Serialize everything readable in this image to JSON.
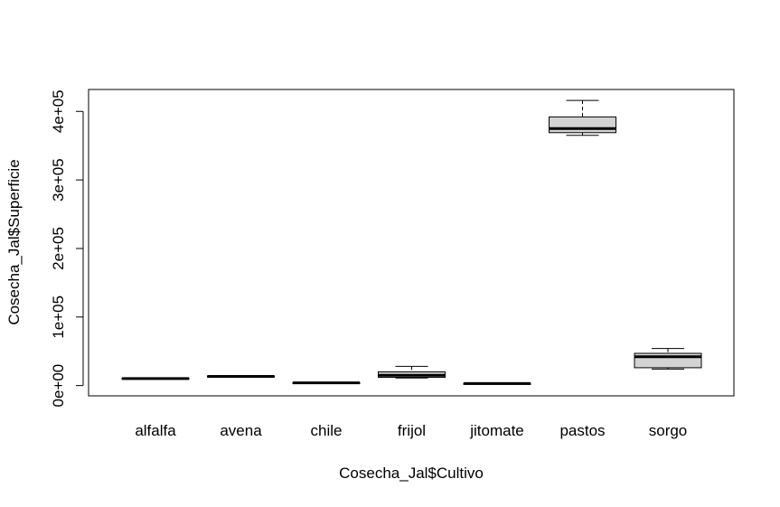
{
  "chart_data": {
    "type": "boxplot",
    "title": "",
    "xlabel": "Cosecha_Jal$Cultivo",
    "ylabel": "Cosecha_Jal$Superficie",
    "ylim": [
      -15000,
      432000
    ],
    "yticks": [
      {
        "value": 0,
        "label": "0e+00"
      },
      {
        "value": 100000,
        "label": "1e+05"
      },
      {
        "value": 200000,
        "label": "2e+05"
      },
      {
        "value": 300000,
        "label": "3e+05"
      },
      {
        "value": 400000,
        "label": "4e+05"
      }
    ],
    "grid": false,
    "categories": [
      "alfalfa",
      "avena",
      "chile",
      "frijol",
      "jitomate",
      "pastos",
      "sorgo"
    ],
    "boxes": [
      {
        "category": "alfalfa",
        "min": 9500,
        "q1": 9800,
        "median": 10200,
        "q3": 10600,
        "max": 10900
      },
      {
        "category": "avena",
        "min": 12800,
        "q1": 13000,
        "median": 13400,
        "q3": 13800,
        "max": 14000
      },
      {
        "category": "chile",
        "min": 3500,
        "q1": 3700,
        "median": 4000,
        "q3": 4300,
        "max": 4500
      },
      {
        "category": "frijol",
        "min": 11000,
        "q1": 12000,
        "median": 15000,
        "q3": 20000,
        "max": 28000
      },
      {
        "category": "jitomate",
        "min": 2400,
        "q1": 2600,
        "median": 2900,
        "q3": 3100,
        "max": 3300
      },
      {
        "category": "pastos",
        "min": 365000,
        "q1": 369000,
        "median": 375000,
        "q3": 392000,
        "max": 416000
      },
      {
        "category": "sorgo",
        "min": 24000,
        "q1": 26000,
        "median": 42000,
        "q3": 47000,
        "max": 54000
      }
    ],
    "box_fill": "#d3d3d3",
    "line_color": "#000000"
  }
}
